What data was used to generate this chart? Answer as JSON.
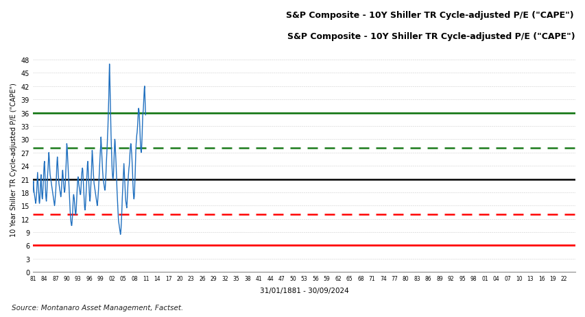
{
  "title": "S&P Composite - 10Y Shiller TR Cycle-adjusted P/E (\"CAPE\")",
  "ylabel": "10 Year Shiller TR Cycle-adjusted P/E (\"CAPE\")",
  "xlabel": "31/01/1881 - 30/09/2024",
  "source": "Source: Montanaro Asset Management, Factset.",
  "ylim": [
    0,
    51
  ],
  "yticks": [
    0,
    3,
    6,
    9,
    12,
    15,
    18,
    21,
    24,
    27,
    30,
    33,
    36,
    39,
    42,
    45,
    48
  ],
  "hline_black": 21,
  "hline_green_solid": 36,
  "hline_green_dashed": 28,
  "hline_red_solid": 6,
  "hline_red_dashed": 13,
  "line_color": "#1F6FBF",
  "background_color": "#FFFFFF",
  "grid_color": "#AAAAAA",
  "title_color": "#000000",
  "xtick_labels": [
    "81",
    "84",
    "87",
    "90",
    "93",
    "96",
    "99",
    "02",
    "05",
    "08",
    "11",
    "14",
    "17",
    "20",
    "23",
    "26",
    "29",
    "32",
    "35",
    "38",
    "41",
    "44",
    "47",
    "50",
    "53",
    "56",
    "59",
    "62",
    "65",
    "68",
    "71",
    "74",
    "77",
    "80",
    "83",
    "86",
    "89",
    "92",
    "95",
    "98",
    "01",
    "04",
    "07",
    "10",
    "13",
    "16",
    "19",
    "22"
  ],
  "cape_data": [
    18.0,
    20.0,
    20.5,
    19.0,
    18.0,
    17.5,
    17.0,
    16.5,
    16.0,
    15.5,
    16.0,
    17.0,
    18.0,
    19.5,
    21.0,
    22.5,
    21.0,
    19.5,
    18.5,
    17.5,
    16.0,
    15.5,
    16.0,
    17.5,
    19.0,
    21.0,
    22.0,
    20.0,
    18.5,
    17.0,
    16.5,
    17.0,
    18.5,
    20.0,
    21.5,
    23.0,
    24.5,
    25.0,
    23.5,
    21.0,
    19.0,
    17.5,
    16.5,
    16.0,
    17.0,
    18.5,
    20.5,
    22.0,
    23.0,
    24.5,
    26.0,
    27.0,
    26.0,
    24.5,
    23.0,
    22.0,
    21.5,
    21.0,
    20.5,
    20.0,
    19.5,
    19.0,
    18.5,
    18.0,
    17.5,
    17.0,
    16.5,
    16.0,
    15.5,
    15.0,
    15.5,
    16.5,
    17.5,
    18.5,
    20.0,
    21.5,
    23.5,
    25.0,
    26.0,
    25.0,
    23.5,
    22.0,
    21.0,
    20.0,
    19.5,
    19.0,
    18.5,
    18.0,
    17.5,
    17.0,
    17.5,
    18.5,
    20.0,
    21.0,
    22.5,
    23.0,
    22.0,
    21.0,
    20.0,
    19.0,
    18.5,
    18.0,
    18.5,
    19.5,
    21.0,
    23.0,
    24.5,
    26.5,
    29.0,
    28.5,
    27.0,
    25.5,
    24.0,
    22.5,
    21.0,
    19.5,
    18.0,
    16.5,
    15.0,
    13.5,
    12.5,
    11.5,
    11.0,
    10.5,
    10.5,
    11.5,
    12.5,
    14.0,
    15.5,
    17.0,
    17.5,
    17.0,
    16.5,
    15.5,
    14.5,
    13.5,
    13.0,
    13.0,
    14.0,
    15.5,
    17.0,
    18.5,
    20.0,
    21.0,
    21.5,
    21.0,
    20.0,
    19.5,
    19.0,
    18.5,
    18.0,
    17.5,
    17.5,
    18.5,
    20.0,
    21.5,
    22.5,
    23.0,
    23.5,
    23.0,
    21.5,
    20.0,
    18.5,
    17.0,
    15.5,
    14.5,
    14.0,
    14.5,
    15.5,
    17.0,
    18.5,
    20.0,
    21.5,
    23.0,
    24.5,
    25.0,
    23.5,
    22.0,
    20.5,
    19.0,
    17.5,
    16.5,
    16.0,
    17.0,
    18.5,
    20.0,
    22.0,
    23.5,
    25.5,
    27.5,
    26.5,
    25.0,
    23.5,
    22.0,
    21.0,
    20.0,
    19.5,
    19.0,
    18.5,
    18.0,
    17.5,
    17.0,
    16.5,
    16.0,
    15.5,
    15.0,
    15.5,
    16.5,
    17.5,
    18.5,
    20.0,
    21.5,
    23.0,
    24.5,
    26.0,
    27.5,
    28.5,
    30.5,
    29.0,
    27.5,
    26.0,
    24.5,
    23.0,
    22.0,
    21.0,
    20.5,
    20.0,
    19.5,
    19.0,
    18.5,
    18.5,
    19.5,
    21.0,
    22.5,
    24.5,
    26.0,
    27.5,
    29.0,
    31.0,
    32.5,
    35.0,
    37.5,
    40.0,
    44.0,
    47.0,
    44.5,
    41.0,
    37.5,
    34.0,
    31.0,
    28.5,
    26.0,
    24.0,
    22.5,
    21.5,
    21.0,
    21.5,
    22.5,
    24.5,
    26.5,
    28.5,
    30.0,
    29.5,
    27.5,
    26.0,
    24.5,
    22.5,
    20.5,
    18.5,
    17.0,
    15.5,
    14.0,
    12.5,
    11.5,
    11.0,
    10.5,
    10.0,
    9.5,
    9.0,
    8.5,
    9.0,
    10.0,
    11.5,
    13.0,
    15.0,
    17.0,
    18.5,
    20.0,
    21.5,
    23.0,
    24.5,
    23.0,
    21.5,
    20.0,
    18.5,
    17.0,
    16.0,
    15.5,
    15.0,
    14.5,
    15.5,
    17.0,
    18.5,
    20.0,
    21.5,
    22.5,
    23.5,
    24.0,
    25.0,
    26.5,
    27.5,
    28.5,
    29.0,
    28.5,
    27.5,
    26.5,
    25.0,
    23.5,
    21.5,
    19.5,
    18.0,
    17.0,
    16.5,
    17.0,
    18.5,
    20.5,
    22.5,
    25.0,
    27.5,
    29.0,
    30.0,
    31.0,
    31.5,
    32.5,
    33.5,
    35.0,
    36.5,
    37.0,
    36.5,
    35.5,
    34.0,
    32.0,
    30.0,
    28.5,
    27.5,
    27.0,
    27.5,
    29.0,
    31.0,
    33.5,
    35.5,
    36.0,
    37.0,
    38.5,
    40.0,
    41.5,
    42.0,
    39.5,
    37.5,
    35.5
  ]
}
